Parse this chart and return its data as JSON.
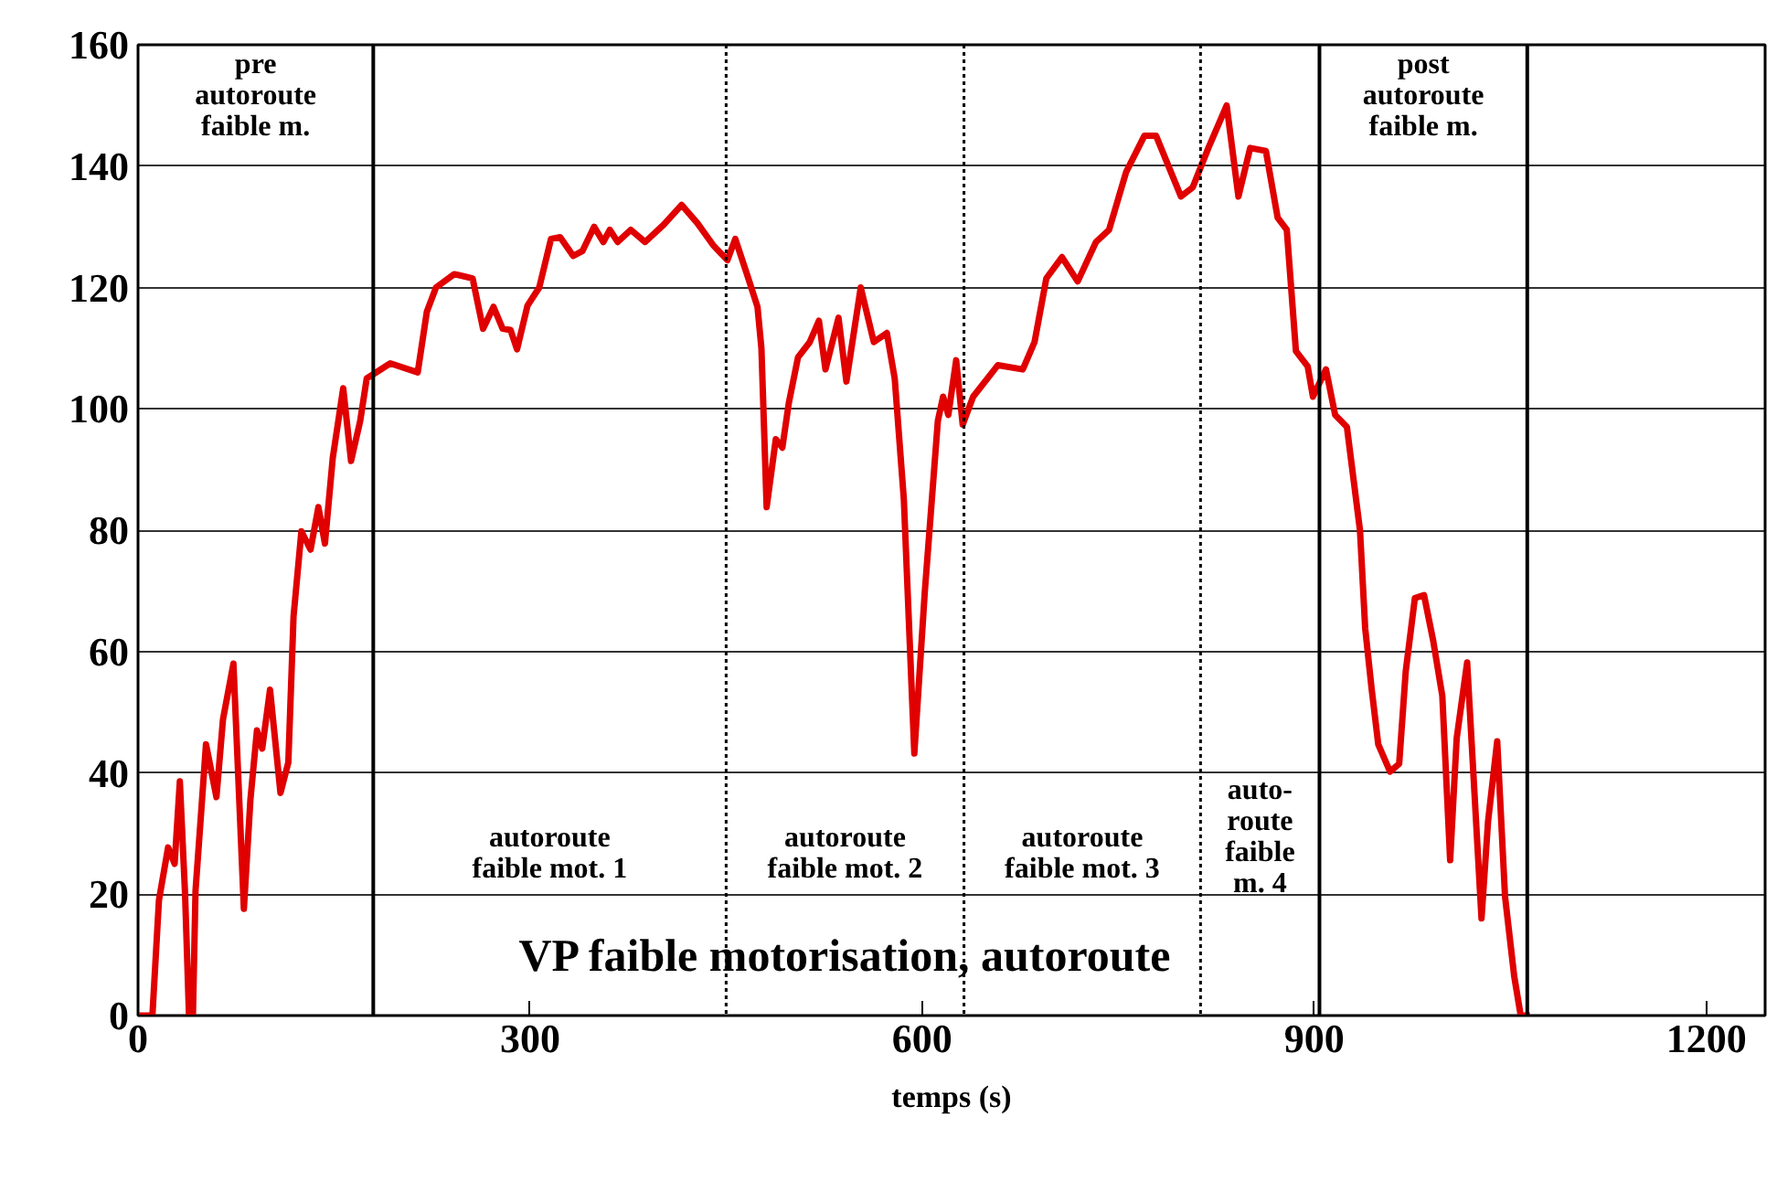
{
  "chart_data": {
    "type": "line",
    "title": "VP faible motorisation, autoroute",
    "xlabel": "temps (s)",
    "xlim": [
      0,
      1245
    ],
    "ylim": [
      0,
      160
    ],
    "xticks": [
      0,
      300,
      600,
      900,
      1200
    ],
    "yticks": [
      0,
      20,
      40,
      60,
      80,
      100,
      120,
      140,
      160
    ],
    "grid": "y",
    "marker": "none",
    "line_style": "solid",
    "series": [
      {
        "color": "#e00000",
        "x": [
          0,
          3,
          11,
          16,
          23,
          28,
          32,
          36,
          39,
          42,
          44,
          49,
          52,
          60,
          65,
          73,
          81,
          86,
          91,
          95,
          101,
          109,
          115,
          119,
          125,
          132,
          138,
          143,
          149,
          157,
          163,
          170,
          175,
          193,
          214,
          221,
          228,
          242,
          256,
          264,
          272,
          279,
          285,
          290,
          298,
          307,
          316,
          323,
          333,
          340,
          349,
          356,
          361,
          367,
          377,
          388,
          402,
          416,
          428,
          440,
          451,
          457,
          467,
          474,
          477,
          481,
          488,
          493,
          498,
          505,
          514,
          521,
          526,
          536,
          542,
          553,
          563,
          573,
          579,
          586,
          594,
          602,
          612,
          616,
          620,
          626,
          631,
          639,
          658,
          677,
          686,
          695,
          707,
          719,
          733,
          743,
          756,
          770,
          779,
          798,
          807,
          819,
          833,
          842,
          851,
          863,
          872,
          879,
          886,
          895,
          899,
          909,
          916,
          925,
          935,
          939,
          944,
          949,
          958,
          965,
          970,
          977,
          984,
          991,
          998,
          1004,
          1009,
          1017,
          1028,
          1033,
          1040,
          1046,
          1053,
          1058,
          1065
        ],
        "values": [
          0,
          0,
          0,
          19,
          27.7,
          25,
          38.6,
          20,
          0,
          0,
          20.6,
          35.6,
          44.7,
          36,
          48.8,
          58,
          17.6,
          35.6,
          47,
          44,
          53.7,
          36.7,
          41.7,
          65.8,
          79.8,
          76.8,
          83.8,
          77.8,
          91.9,
          103.4,
          91.4,
          98,
          105,
          107.5,
          106,
          116,
          120,
          122.2,
          121.5,
          113.2,
          116.8,
          113.2,
          113,
          109.8,
          117,
          120,
          128,
          128.3,
          125.2,
          126,
          130,
          127.5,
          129.5,
          127.5,
          129.5,
          127.5,
          130.3,
          133.6,
          130.6,
          127,
          124.5,
          128,
          121.5,
          116.8,
          110,
          83.8,
          95,
          93.6,
          101,
          108.5,
          111,
          114.5,
          106.5,
          115,
          104.5,
          120,
          111,
          112.5,
          105,
          85,
          43.2,
          69.8,
          98,
          102,
          99,
          108,
          97.4,
          102,
          107.2,
          106.5,
          111,
          121.5,
          125,
          121,
          127.5,
          129.5,
          139,
          145,
          145,
          135,
          136.5,
          143,
          150,
          135,
          143,
          142.5,
          131.5,
          129.5,
          109.5,
          107,
          102,
          106.5,
          99,
          97,
          80,
          63.8,
          53.7,
          44.7,
          40.2,
          41.5,
          56.7,
          68.8,
          69.3,
          61.8,
          52.7,
          25.6,
          45.7,
          58.2,
          16,
          32,
          45.2,
          19.6,
          6.5,
          0,
          0
        ]
      }
    ],
    "ref_lines": [
      {
        "axis": "x",
        "value": 180,
        "line_style": "solid",
        "color": "#000000"
      },
      {
        "axis": "x",
        "value": 450,
        "line_style": "dotted",
        "color": "#000000"
      },
      {
        "axis": "x",
        "value": 632,
        "line_style": "dotted",
        "color": "#000000"
      },
      {
        "axis": "x",
        "value": 813,
        "line_style": "dotted",
        "color": "#000000"
      },
      {
        "axis": "x",
        "value": 904,
        "line_style": "solid",
        "color": "#000000"
      },
      {
        "axis": "x",
        "value": 1063,
        "line_style": "solid",
        "color": "#000000"
      }
    ],
    "annotations": [
      "pre\nautoroute\nfaible m.",
      "autoroute\nfaible mot. 1",
      "autoroute\nfaible mot. 2",
      "autoroute\nfaible mot. 3",
      "auto-\nroute\nfaible\nm. 4",
      "post\nautoroute\nfaible m."
    ]
  }
}
